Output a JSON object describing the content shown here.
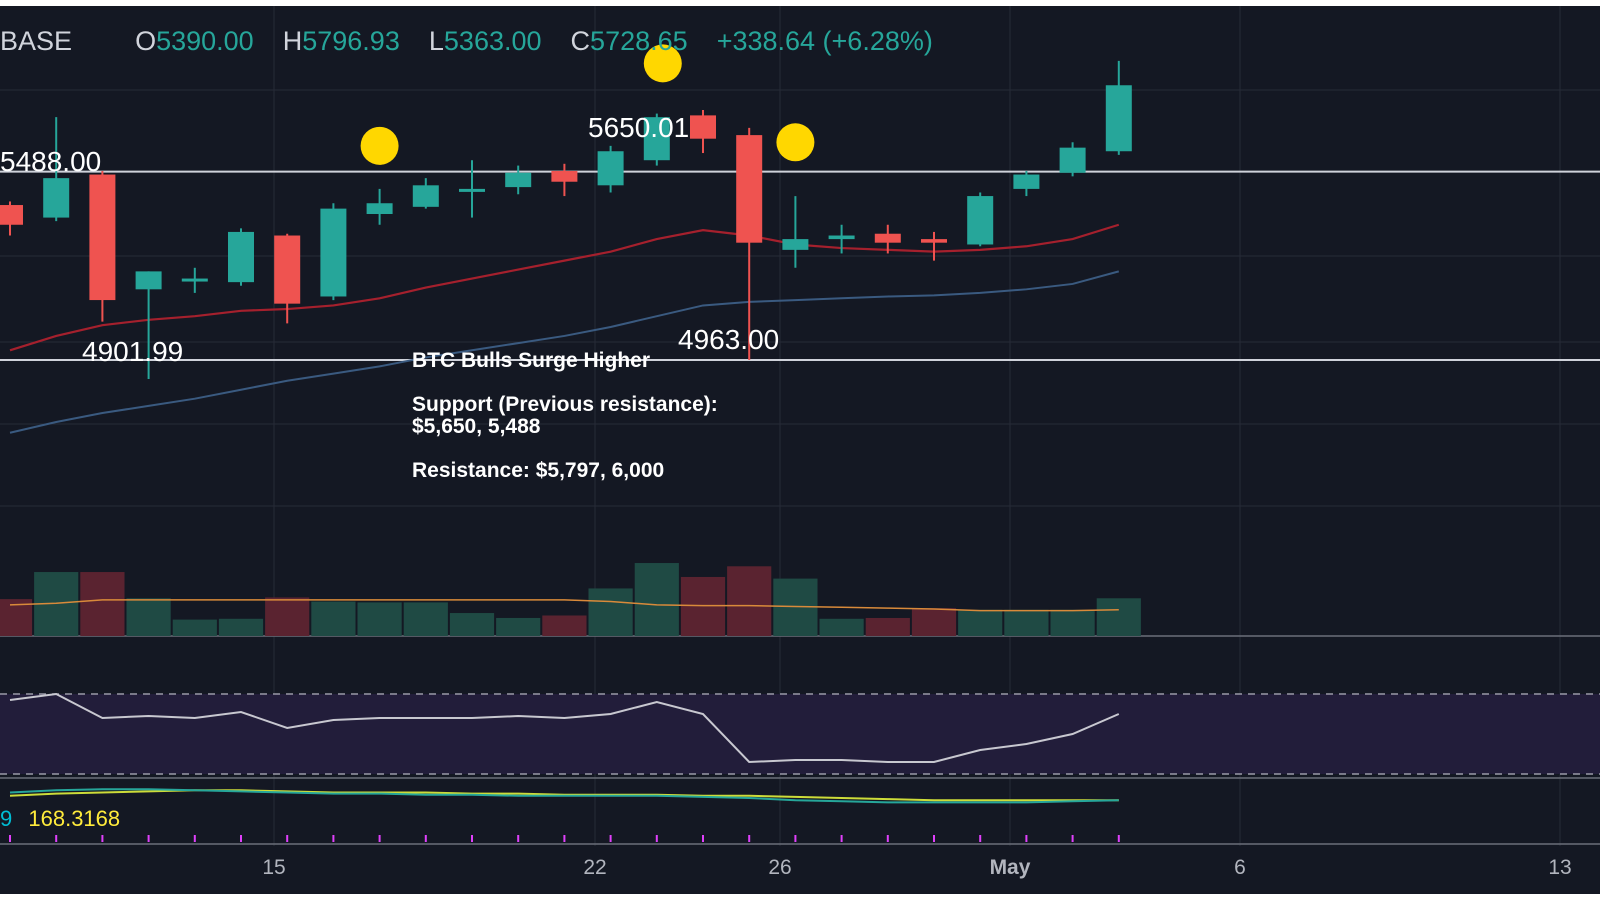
{
  "header": {
    "symbol": "BASE",
    "open_label": "O",
    "open": "5390.00",
    "high_label": "H",
    "high": "5796.93",
    "low_label": "L",
    "low": "5363.00",
    "close_label": "C",
    "close": "5728.65",
    "change": "+338.64 (+6.28%)"
  },
  "annotation": {
    "title": "BTC Bulls Surge Higher",
    "support_line1": "Support (Previous resistance):",
    "support_line2": "$5,650, 5,488",
    "resistance": "Resistance: $5,797, 6,000"
  },
  "price_labels": {
    "resistance_level": "5488.00",
    "low_left": "4901.99",
    "peak": "5650.01",
    "low_mid": "4963.00"
  },
  "indicator_values": {
    "left_cut": "9",
    "value": "168.3168"
  },
  "colors": {
    "background": "#141823",
    "bull": "#26a69a",
    "bear": "#ef5350",
    "ma_fast": "#a5202d",
    "ma_slow": "#3a5a80",
    "marker": "#ffd700",
    "rsi_line": "#c8c8d0",
    "rsi_band": "#221d3a"
  },
  "chart_data": {
    "type": "candlestick",
    "x_ticks": [
      "15",
      "22",
      "26",
      "May",
      "6",
      "13"
    ],
    "candles": [
      {
        "o": 5395,
        "h": 5405,
        "l": 5310,
        "c": 5340
      },
      {
        "o": 5360,
        "h": 5640,
        "l": 5350,
        "c": 5470
      },
      {
        "o": 5480,
        "h": 5490,
        "l": 5070,
        "c": 5130
      },
      {
        "o": 5160,
        "h": 5210,
        "l": 4910,
        "c": 5210
      },
      {
        "o": 5185,
        "h": 5220,
        "l": 5150,
        "c": 5190
      },
      {
        "o": 5180,
        "h": 5330,
        "l": 5170,
        "c": 5320
      },
      {
        "o": 5310,
        "h": 5315,
        "l": 5065,
        "c": 5120
      },
      {
        "o": 5140,
        "h": 5400,
        "l": 5130,
        "c": 5385
      },
      {
        "o": 5370,
        "h": 5440,
        "l": 5340,
        "c": 5400
      },
      {
        "o": 5390,
        "h": 5470,
        "l": 5385,
        "c": 5450
      },
      {
        "o": 5435,
        "h": 5520,
        "l": 5360,
        "c": 5440
      },
      {
        "o": 5445,
        "h": 5505,
        "l": 5425,
        "c": 5485
      },
      {
        "o": 5490,
        "h": 5510,
        "l": 5420,
        "c": 5460
      },
      {
        "o": 5450,
        "h": 5560,
        "l": 5430,
        "c": 5545
      },
      {
        "o": 5520,
        "h": 5650,
        "l": 5505,
        "c": 5640
      },
      {
        "o": 5645,
        "h": 5660,
        "l": 5540,
        "c": 5580
      },
      {
        "o": 5590,
        "h": 5610,
        "l": 4963,
        "c": 5290
      },
      {
        "o": 5270,
        "h": 5420,
        "l": 5220,
        "c": 5300
      },
      {
        "o": 5300,
        "h": 5340,
        "l": 5260,
        "c": 5310
      },
      {
        "o": 5315,
        "h": 5340,
        "l": 5260,
        "c": 5290
      },
      {
        "o": 5300,
        "h": 5320,
        "l": 5240,
        "c": 5290
      },
      {
        "o": 5285,
        "h": 5430,
        "l": 5280,
        "c": 5420
      },
      {
        "o": 5440,
        "h": 5490,
        "l": 5420,
        "c": 5480
      },
      {
        "o": 5485,
        "h": 5570,
        "l": 5475,
        "c": 5555
      },
      {
        "o": 5545,
        "h": 5797,
        "l": 5535,
        "c": 5729
      }
    ],
    "ma_fast": [
      4990,
      5030,
      5060,
      5075,
      5085,
      5100,
      5105,
      5115,
      5135,
      5165,
      5190,
      5215,
      5240,
      5265,
      5300,
      5325,
      5310,
      5285,
      5275,
      5270,
      5265,
      5270,
      5280,
      5300,
      5340
    ],
    "ma_slow": [
      4760,
      4790,
      4815,
      4835,
      4855,
      4880,
      4905,
      4925,
      4945,
      4970,
      4990,
      5010,
      5030,
      5055,
      5085,
      5115,
      5125,
      5130,
      5135,
      5140,
      5143,
      5150,
      5160,
      5175,
      5210
    ],
    "levels": [
      5488,
      4963
    ],
    "y_range": [
      4500,
      5950
    ],
    "volume": [
      45,
      78,
      78,
      46,
      20,
      21,
      47,
      42,
      41,
      41,
      28,
      22,
      25,
      58,
      89,
      72,
      85,
      70,
      21,
      22,
      34,
      32,
      32,
      32,
      46
    ],
    "volume_ma": [
      38,
      40,
      44,
      44,
      44,
      44,
      44,
      44,
      44,
      44,
      44,
      44,
      44,
      42,
      38,
      37,
      37,
      36,
      35,
      34,
      33,
      31,
      31,
      31,
      32
    ],
    "rsi": [
      67,
      70,
      58,
      59,
      58,
      61,
      53,
      57,
      58,
      58,
      58,
      59,
      58,
      60,
      66,
      60,
      36,
      37,
      37,
      36,
      36,
      42,
      45,
      50,
      60
    ],
    "macd_line": [
      165,
      167,
      168,
      168,
      167,
      166,
      165,
      164,
      164,
      163,
      163,
      162,
      162,
      162,
      162,
      161,
      160,
      158,
      157,
      156,
      156,
      156,
      156,
      157,
      158
    ],
    "signal_line": [
      162,
      164,
      165,
      166,
      167,
      167,
      166,
      165,
      165,
      165,
      164,
      164,
      163,
      163,
      163,
      162,
      162,
      161,
      160,
      159,
      158,
      158,
      158,
      158,
      158
    ],
    "markers_on_candles": [
      8,
      14,
      17
    ]
  }
}
